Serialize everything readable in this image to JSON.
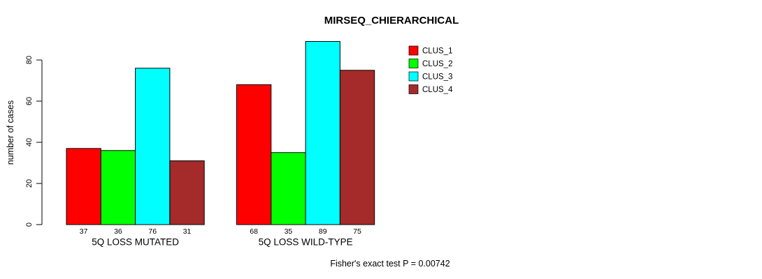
{
  "title": "MIRSEQ_CHIERARCHICAL",
  "chart_data": {
    "type": "bar",
    "title": "MIRSEQ_CHIERARCHICAL",
    "ylabel": "number of cases",
    "xlabel": "",
    "categories": [
      "5Q LOSS MUTATED",
      "5Q LOSS WILD-TYPE"
    ],
    "series": [
      {
        "name": "CLUS_1",
        "color": "#FF0000",
        "values": [
          37,
          68
        ]
      },
      {
        "name": "CLUS_2",
        "color": "#00FF00",
        "values": [
          36,
          35
        ]
      },
      {
        "name": "CLUS_3",
        "color": "#00FFFF",
        "values": [
          76,
          89
        ]
      },
      {
        "name": "CLUS_4",
        "color": "#A52A2A",
        "values": [
          31,
          75
        ]
      }
    ],
    "yticks": [
      0,
      20,
      40,
      60,
      80
    ],
    "ylim": [
      0,
      89
    ],
    "grid": false,
    "show_bar_values": true,
    "legend_position": "top-right",
    "legend_entries": [
      "CLUS_1",
      "CLUS_2",
      "CLUS_3",
      "CLUS_4"
    ],
    "annotation": "Fisher's exact test P = 0.00742"
  },
  "colors": {
    "background": "#FFFFFF",
    "axis": "#000000",
    "bar_border": "#000000",
    "text": "#000000"
  }
}
